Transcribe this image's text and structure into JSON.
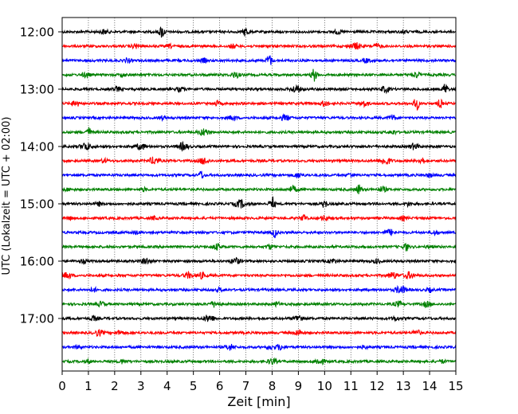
{
  "chart_data": {
    "type": "line",
    "title": "",
    "xlabel": "Zeit  [min]",
    "ylabel": "UTC (Lokalzeit = UTC + 02:00)",
    "xlim": [
      0,
      15
    ],
    "x_ticks": [
      "0",
      "1",
      "2",
      "3",
      "4",
      "5",
      "6",
      "7",
      "8",
      "9",
      "10",
      "11",
      "12",
      "13",
      "14",
      "15"
    ],
    "y_ticks": [
      "12:00",
      "13:00",
      "14:00",
      "15:00",
      "16:00",
      "17:00"
    ],
    "grid": "vertical dotted at each minute",
    "colors": [
      "#000000",
      "#ff0000",
      "#0000ff",
      "#008000"
    ],
    "traces": [
      {
        "start": "12:00",
        "color": "#000000",
        "events": [
          [
            1.6,
            0.35
          ],
          [
            3.8,
            1.0
          ],
          [
            7.0,
            0.8
          ],
          [
            10.5,
            0.3
          ],
          [
            13.0,
            0.25
          ]
        ]
      },
      {
        "start": "12:15",
        "color": "#ff0000",
        "events": [
          [
            2.8,
            0.35
          ],
          [
            4.1,
            0.25
          ],
          [
            6.5,
            0.3
          ],
          [
            11.2,
            0.5
          ],
          [
            12.0,
            0.35
          ]
        ]
      },
      {
        "start": "12:30",
        "color": "#0000ff",
        "events": [
          [
            2.5,
            0.3
          ],
          [
            5.4,
            0.3
          ],
          [
            7.9,
            0.9
          ],
          [
            11.6,
            0.3
          ]
        ]
      },
      {
        "start": "12:45",
        "color": "#008000",
        "events": [
          [
            0.9,
            0.35
          ],
          [
            2.3,
            0.25
          ],
          [
            6.6,
            0.45
          ],
          [
            9.6,
            1.0
          ],
          [
            13.5,
            0.4
          ]
        ]
      },
      {
        "start": "13:00",
        "color": "#000000",
        "events": [
          [
            2.1,
            0.35
          ],
          [
            4.5,
            0.35
          ],
          [
            8.9,
            0.55
          ],
          [
            12.3,
            0.45
          ],
          [
            14.6,
            0.9
          ]
        ]
      },
      {
        "start": "13:15",
        "color": "#ff0000",
        "events": [
          [
            0.5,
            0.45
          ],
          [
            5.9,
            0.35
          ],
          [
            10.0,
            0.4
          ],
          [
            11.5,
            0.4
          ],
          [
            13.5,
            1.0
          ],
          [
            14.4,
            0.7
          ]
        ]
      },
      {
        "start": "13:30",
        "color": "#0000ff",
        "events": [
          [
            3.8,
            0.25
          ],
          [
            6.5,
            0.35
          ],
          [
            8.5,
            0.45
          ],
          [
            12.6,
            0.35
          ]
        ]
      },
      {
        "start": "13:45",
        "color": "#008000",
        "events": [
          [
            1.0,
            0.8
          ],
          [
            5.4,
            0.55
          ],
          [
            12.6,
            0.3
          ]
        ]
      },
      {
        "start": "14:00",
        "color": "#000000",
        "events": [
          [
            0.9,
            0.6
          ],
          [
            3.0,
            0.5
          ],
          [
            4.6,
            0.55
          ],
          [
            13.4,
            0.45
          ]
        ]
      },
      {
        "start": "14:15",
        "color": "#ff0000",
        "events": [
          [
            1.6,
            0.3
          ],
          [
            3.5,
            0.55
          ],
          [
            5.4,
            0.5
          ],
          [
            12.3,
            0.6
          ],
          [
            13.7,
            0.7
          ]
        ]
      },
      {
        "start": "14:30",
        "color": "#0000ff",
        "events": [
          [
            5.3,
            0.7
          ],
          [
            9.0,
            0.4
          ],
          [
            11.0,
            0.3
          ],
          [
            14.0,
            0.3
          ]
        ]
      },
      {
        "start": "14:45",
        "color": "#008000",
        "events": [
          [
            0.2,
            0.25
          ],
          [
            3.1,
            0.25
          ],
          [
            8.8,
            0.45
          ],
          [
            11.3,
            0.8
          ],
          [
            12.2,
            0.4
          ]
        ]
      },
      {
        "start": "15:00",
        "color": "#000000",
        "events": [
          [
            1.4,
            0.3
          ],
          [
            6.8,
            0.6
          ],
          [
            8.0,
            1.0
          ],
          [
            10.0,
            0.7
          ],
          [
            13.2,
            0.3
          ]
        ]
      },
      {
        "start": "15:15",
        "color": "#ff0000",
        "events": [
          [
            0.3,
            0.25
          ],
          [
            3.5,
            0.25
          ],
          [
            9.2,
            0.65
          ],
          [
            10.0,
            0.35
          ],
          [
            13.0,
            0.3
          ]
        ]
      },
      {
        "start": "15:30",
        "color": "#0000ff",
        "events": [
          [
            2.8,
            0.25
          ],
          [
            8.1,
            0.8
          ],
          [
            12.5,
            0.45
          ],
          [
            14.2,
            0.3
          ]
        ]
      },
      {
        "start": "15:45",
        "color": "#008000",
        "events": [
          [
            5.9,
            0.45
          ],
          [
            7.9,
            0.35
          ],
          [
            13.1,
            0.7
          ],
          [
            14.0,
            0.25
          ]
        ]
      },
      {
        "start": "16:00",
        "color": "#000000",
        "events": [
          [
            0.8,
            0.3
          ],
          [
            3.2,
            0.45
          ],
          [
            6.6,
            0.5
          ],
          [
            10.3,
            0.35
          ],
          [
            12.0,
            0.3
          ]
        ]
      },
      {
        "start": "16:15",
        "color": "#ff0000",
        "events": [
          [
            0.2,
            0.45
          ],
          [
            4.8,
            0.45
          ],
          [
            5.3,
            0.45
          ],
          [
            12.6,
            0.5
          ],
          [
            13.2,
            0.5
          ]
        ]
      },
      {
        "start": "16:30",
        "color": "#0000ff",
        "events": [
          [
            1.2,
            0.3
          ],
          [
            6.0,
            0.25
          ],
          [
            12.9,
            0.6
          ],
          [
            14.0,
            0.3
          ]
        ]
      },
      {
        "start": "16:45",
        "color": "#008000",
        "events": [
          [
            1.5,
            0.35
          ],
          [
            5.8,
            0.45
          ],
          [
            8.2,
            0.3
          ],
          [
            12.8,
            0.4
          ],
          [
            13.9,
            0.4
          ]
        ]
      },
      {
        "start": "17:00",
        "color": "#000000",
        "events": [
          [
            1.2,
            0.35
          ],
          [
            5.6,
            0.55
          ],
          [
            9.0,
            0.5
          ],
          [
            12.7,
            0.3
          ]
        ]
      },
      {
        "start": "17:15",
        "color": "#ff0000",
        "events": [
          [
            1.4,
            0.45
          ],
          [
            2.2,
            0.35
          ],
          [
            9.0,
            0.45
          ],
          [
            13.5,
            0.4
          ]
        ]
      },
      {
        "start": "17:30",
        "color": "#0000ff",
        "events": [
          [
            0.6,
            0.25
          ],
          [
            6.4,
            0.45
          ],
          [
            7.9,
            0.3
          ],
          [
            8.3,
            0.4
          ],
          [
            11.5,
            0.25
          ]
        ]
      },
      {
        "start": "17:45",
        "color": "#008000",
        "events": [
          [
            1.0,
            0.25
          ],
          [
            2.3,
            0.3
          ],
          [
            8.0,
            0.45
          ],
          [
            9.8,
            0.5
          ],
          [
            14.5,
            0.25
          ]
        ]
      }
    ]
  }
}
